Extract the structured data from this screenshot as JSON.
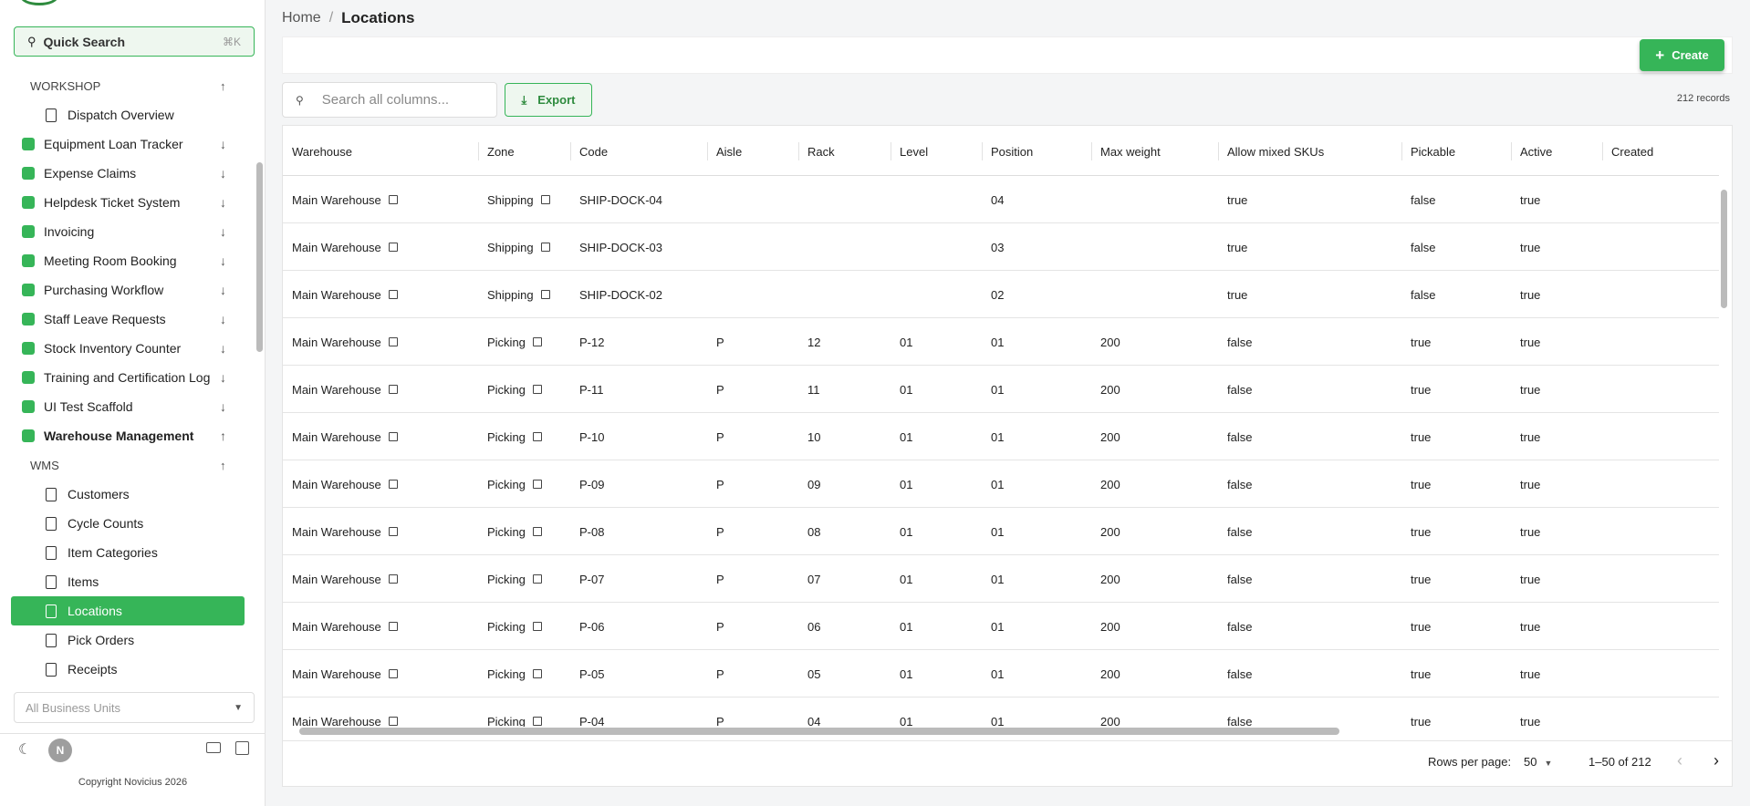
{
  "sidebar": {
    "search": "Quick Search",
    "shortcut": "⌘K",
    "workshop": {
      "label": "WORKSHOP",
      "pages": [
        "Dispatch Overview"
      ]
    },
    "apps": [
      "Equipment Loan Tracker",
      "Expense Claims",
      "Helpdesk Ticket System",
      "Invoicing",
      "Meeting Room Booking",
      "Purchasing Workflow",
      "Staff Leave Requests",
      "Stock Inventory Counter",
      "Training and Certification Log",
      "UI Test Scaffold",
      "Warehouse Management"
    ],
    "wms": {
      "label": "WMS",
      "pages": [
        "Customers",
        "Cycle Counts",
        "Item Categories",
        "Items",
        "Locations",
        "Pick Orders",
        "Receipts"
      ]
    },
    "business_unit": "All Business Units",
    "avatar": "N",
    "copyright": "Copyright Novicius 2026"
  },
  "breadcrumb": {
    "home": "Home",
    "separator": "/",
    "current": "Locations"
  },
  "toolbar": {
    "create": "Create",
    "search": "Search all columns...",
    "export": "Export",
    "records": "212 records"
  },
  "table": {
    "columns": [
      "Warehouse",
      "Zone",
      "Code",
      "Aisle",
      "Rack",
      "Level",
      "Position",
      "Max weight",
      "Allow mixed SKUs",
      "Pickable",
      "Active",
      "Created"
    ],
    "rows": [
      [
        "Main Warehouse",
        "Shipping",
        "SHIP-DOCK-04",
        null,
        null,
        null,
        "04",
        null,
        "true",
        "false",
        "true",
        null
      ],
      [
        "Main Warehouse",
        "Shipping",
        "SHIP-DOCK-03",
        null,
        null,
        null,
        "03",
        null,
        "true",
        "false",
        "true",
        null
      ],
      [
        "Main Warehouse",
        "Shipping",
        "SHIP-DOCK-02",
        null,
        null,
        null,
        "02",
        null,
        "true",
        "false",
        "true",
        null
      ],
      [
        "Main Warehouse",
        "Picking",
        "P-12",
        "P",
        "12",
        "01",
        "01",
        "200",
        "false",
        "true",
        "true",
        null
      ],
      [
        "Main Warehouse",
        "Picking",
        "P-11",
        "P",
        "11",
        "01",
        "01",
        "200",
        "false",
        "true",
        "true",
        null
      ],
      [
        "Main Warehouse",
        "Picking",
        "P-10",
        "P",
        "10",
        "01",
        "01",
        "200",
        "false",
        "true",
        "true",
        null
      ],
      [
        "Main Warehouse",
        "Picking",
        "P-09",
        "P",
        "09",
        "01",
        "01",
        "200",
        "false",
        "true",
        "true",
        null
      ],
      [
        "Main Warehouse",
        "Picking",
        "P-08",
        "P",
        "08",
        "01",
        "01",
        "200",
        "false",
        "true",
        "true",
        null
      ],
      [
        "Main Warehouse",
        "Picking",
        "P-07",
        "P",
        "07",
        "01",
        "01",
        "200",
        "false",
        "true",
        "true",
        null
      ],
      [
        "Main Warehouse",
        "Picking",
        "P-06",
        "P",
        "06",
        "01",
        "01",
        "200",
        "false",
        "true",
        "true",
        null
      ],
      [
        "Main Warehouse",
        "Picking",
        "P-05",
        "P",
        "05",
        "01",
        "01",
        "200",
        "false",
        "true",
        "true",
        null
      ],
      [
        "Main Warehouse",
        "Picking",
        "P-04",
        "P",
        "04",
        "01",
        "01",
        "200",
        "false",
        "true",
        "true",
        null
      ]
    ]
  },
  "pagination": {
    "label": "Rows per page:",
    "per_page": "50",
    "range": "1–50 of 212"
  }
}
